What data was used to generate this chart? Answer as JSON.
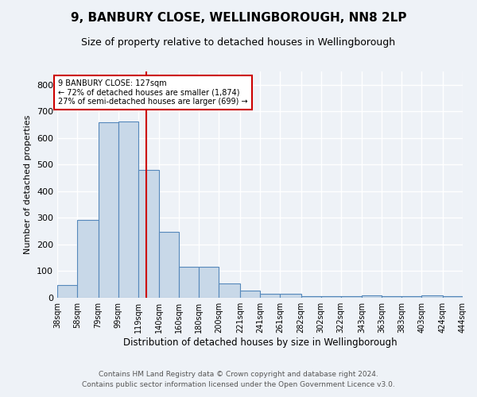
{
  "title": "9, BANBURY CLOSE, WELLINGBOROUGH, NN8 2LP",
  "subtitle": "Size of property relative to detached houses in Wellingborough",
  "xlabel": "Distribution of detached houses by size in Wellingborough",
  "ylabel": "Number of detached properties",
  "bar_values": [
    47,
    293,
    660,
    663,
    480,
    247,
    115,
    115,
    54,
    28,
    15,
    15,
    5,
    5,
    5,
    8,
    5,
    5,
    8,
    5
  ],
  "bin_edges": [
    38,
    58,
    79,
    99,
    119,
    140,
    160,
    180,
    200,
    221,
    241,
    261,
    282,
    302,
    322,
    343,
    363,
    383,
    403,
    424,
    444
  ],
  "tick_labels": [
    "38sqm",
    "58sqm",
    "79sqm",
    "99sqm",
    "119sqm",
    "140sqm",
    "160sqm",
    "180sqm",
    "200sqm",
    "221sqm",
    "241sqm",
    "261sqm",
    "282sqm",
    "302sqm",
    "322sqm",
    "343sqm",
    "363sqm",
    "383sqm",
    "403sqm",
    "424sqm",
    "444sqm"
  ],
  "bar_color": "#c8d8e8",
  "bar_edge_color": "#5588bb",
  "vline_x": 127,
  "vline_color": "#cc0000",
  "annotation_line1": "9 BANBURY CLOSE: 127sqm",
  "annotation_line2": "← 72% of detached houses are smaller (1,874)",
  "annotation_line3": "27% of semi-detached houses are larger (699) →",
  "annotation_box_color": "white",
  "annotation_box_edge": "#cc0000",
  "ylim": [
    0,
    850
  ],
  "yticks": [
    0,
    100,
    200,
    300,
    400,
    500,
    600,
    700,
    800
  ],
  "bg_color": "#eef2f7",
  "grid_color": "#ffffff",
  "footer_line1": "Contains HM Land Registry data © Crown copyright and database right 2024.",
  "footer_line2": "Contains public sector information licensed under the Open Government Licence v3.0."
}
